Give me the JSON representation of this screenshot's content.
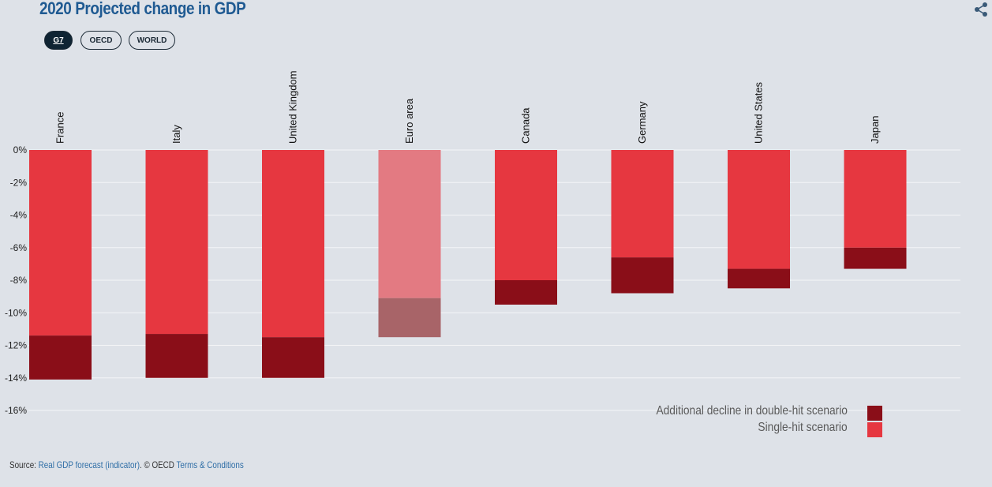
{
  "title": "2020 Projected change in GDP",
  "tabs": [
    {
      "label": "G7",
      "active": true
    },
    {
      "label": "OECD",
      "active": false
    },
    {
      "label": "WORLD",
      "active": false
    }
  ],
  "colors": {
    "single_hit": "#e63740",
    "double_hit": "#8a0e18",
    "highlight_single": "#e37a82",
    "highlight_double": "#a86468",
    "grid": "#f4f5f7"
  },
  "chart_data": {
    "type": "bar",
    "stacked": true,
    "categories": [
      "France",
      "Italy",
      "United Kingdom",
      "Euro area",
      "Canada",
      "Germany",
      "United States",
      "Japan"
    ],
    "highlighted_category": "Euro area",
    "series": [
      {
        "name": "Single-hit scenario",
        "values": [
          -11.4,
          -11.3,
          -11.5,
          -9.1,
          -8.0,
          -6.6,
          -7.3,
          -6.0
        ]
      },
      {
        "name": "Additional decline in double-hit scenario",
        "values": [
          -2.7,
          -2.7,
          -2.5,
          -2.4,
          -1.5,
          -2.2,
          -1.2,
          -1.3
        ]
      }
    ],
    "y_ticks": [
      "0%",
      "-2%",
      "-4%",
      "-6%",
      "-8%",
      "-10%",
      "-12%",
      "-14%",
      "-16%"
    ],
    "ylim": [
      -16,
      0
    ],
    "grid": true,
    "legend_position": "bottom-right"
  },
  "legend": [
    {
      "label": "Additional decline in double-hit scenario",
      "color": "#8a0e18"
    },
    {
      "label": "Single-hit scenario",
      "color": "#e63740"
    }
  ],
  "source": {
    "prefix": "Source: ",
    "link1": "Real GDP forecast (indicator)",
    "middle": ". © OECD ",
    "link2": "Terms & Conditions"
  },
  "icons": {
    "share": "share-icon"
  }
}
